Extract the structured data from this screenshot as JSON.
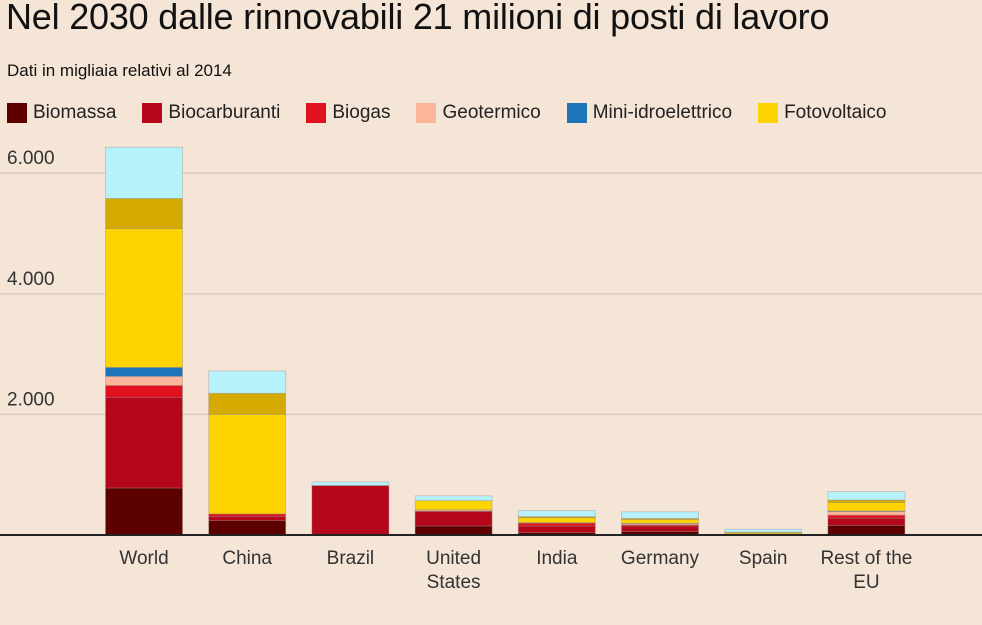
{
  "title": "Nel 2030 dalle rinnovabili 21 milioni di posti di lavoro",
  "subtitle": "Dati in migliaia relativi al 2014",
  "chart_data": {
    "type": "bar",
    "stacked": true,
    "categories": [
      [
        "World"
      ],
      [
        "China"
      ],
      [
        "Brazil"
      ],
      [
        "United",
        "States"
      ],
      [
        "India"
      ],
      [
        "Germany"
      ],
      [
        "Spain"
      ],
      [
        "Rest of the",
        "EU"
      ]
    ],
    "ylim": [
      0,
      6500
    ],
    "yticks": [
      2000,
      4000,
      6000
    ],
    "ytick_labels": [
      "2.000",
      "4.000",
      "6.000"
    ],
    "grid": true,
    "legend_position": "top",
    "series": [
      {
        "name": "Biomassa",
        "color": "#5c0000",
        "values": [
          780,
          240,
          0,
          150,
          40,
          60,
          10,
          160
        ]
      },
      {
        "name": "Biocarburanti",
        "color": "#b5071c",
        "values": [
          1500,
          70,
          820,
          240,
          110,
          90,
          5,
          120
        ]
      },
      {
        "name": "Biogas",
        "color": "#e0101e",
        "values": [
          200,
          40,
          0,
          10,
          50,
          20,
          2,
          50
        ]
      },
      {
        "name": "Geotermico",
        "color": "#fbb59b",
        "values": [
          150,
          0,
          0,
          20,
          0,
          20,
          0,
          60
        ]
      },
      {
        "name": "Mini-idroelettrico",
        "color": "#1d74b8",
        "values": [
          150,
          0,
          0,
          0,
          5,
          5,
          0,
          10
        ]
      },
      {
        "name": "Fotovoltaico",
        "color": "#fdd400",
        "values": [
          2300,
          1650,
          0,
          150,
          80,
          60,
          20,
          140
        ]
      },
      {
        "name": "",
        "color": "#d4aa00",
        "values": [
          500,
          350,
          0,
          0,
          20,
          20,
          10,
          40
        ]
      },
      {
        "name": "",
        "color": "#b7f1fc",
        "values": [
          850,
          370,
          60,
          80,
          100,
          110,
          50,
          140
        ]
      }
    ]
  },
  "legend_items": [
    {
      "label": "Biomassa",
      "color": "#5c0000"
    },
    {
      "label": "Biocarburanti",
      "color": "#b5071c"
    },
    {
      "label": "Biogas",
      "color": "#e0101e"
    },
    {
      "label": "Geotermico",
      "color": "#fbb59b"
    },
    {
      "label": "Mini-idroelettrico",
      "color": "#1d74b8"
    },
    {
      "label": "Fotovoltaico",
      "color": "#fdd400"
    }
  ]
}
